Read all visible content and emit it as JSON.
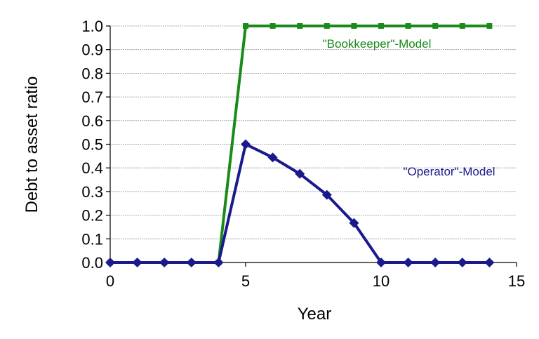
{
  "chart_data": {
    "type": "line",
    "xlabel": "Year",
    "ylabel": "Debt to asset ratio",
    "xlim": [
      0,
      15
    ],
    "ylim": [
      0,
      1
    ],
    "x_ticks": [
      0,
      5,
      10,
      15
    ],
    "y_ticks": [
      0.0,
      0.1,
      0.2,
      0.3,
      0.4,
      0.5,
      0.6,
      0.7,
      0.8,
      0.9,
      1.0
    ],
    "x_tick_labels": [
      "0",
      "5",
      "10",
      "15"
    ],
    "y_tick_labels": [
      "0.0",
      "0.1",
      "0.2",
      "0.3",
      "0.4",
      "0.5",
      "0.6",
      "0.7",
      "0.8",
      "0.9",
      "1.0"
    ],
    "grid": "horizontal",
    "legend": "none",
    "series": [
      {
        "label": "\"Bookkeeper\"-Model",
        "color": "#1a8a1a",
        "marker": "square",
        "x": [
          0,
          1,
          2,
          3,
          4,
          5,
          6,
          7,
          8,
          9,
          10,
          11,
          12,
          13,
          14
        ],
        "y": [
          0,
          0,
          0,
          0,
          0,
          1.0,
          1.0,
          1.0,
          1.0,
          1.0,
          1.0,
          1.0,
          1.0,
          1.0,
          1.0
        ]
      },
      {
        "label": "\"Operator\"-Model",
        "color": "#1a1a8c",
        "marker": "diamond",
        "x": [
          0,
          1,
          2,
          3,
          4,
          5,
          6,
          7,
          8,
          9,
          10,
          11,
          12,
          13,
          14
        ],
        "y": [
          0,
          0,
          0,
          0,
          0,
          0.5,
          0.444,
          0.375,
          0.286,
          0.167,
          0,
          0,
          0,
          0,
          0
        ]
      }
    ]
  }
}
